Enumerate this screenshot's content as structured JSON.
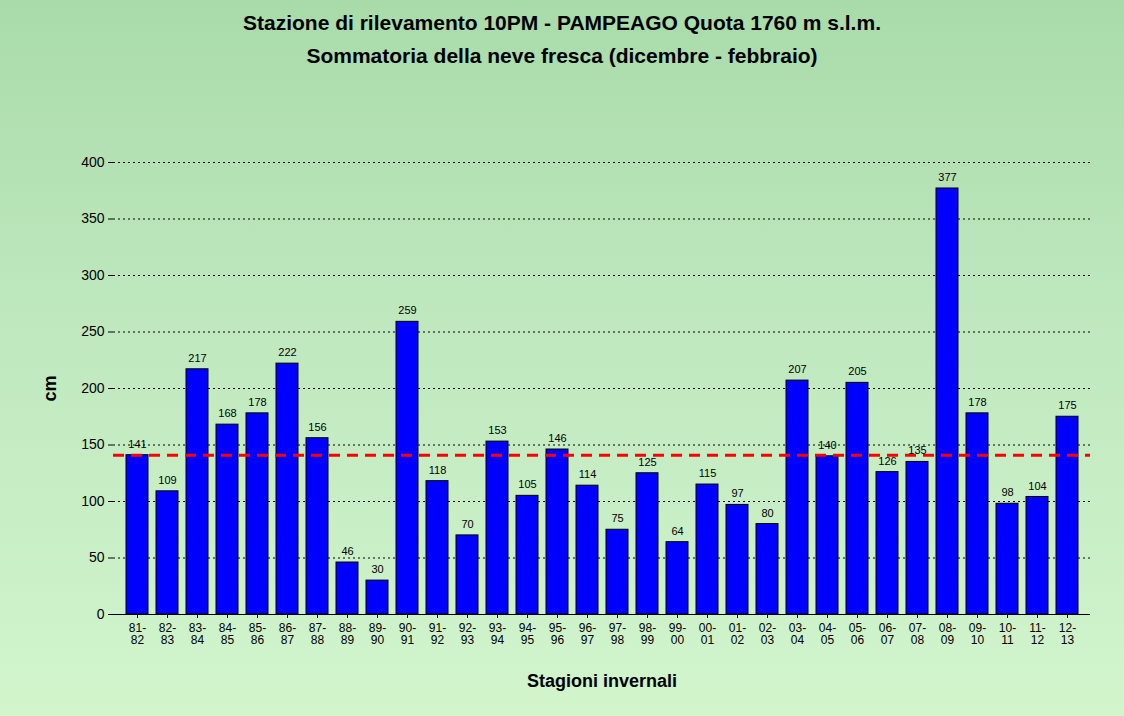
{
  "chart_data": {
    "type": "bar",
    "title": "Stazione di rilevamento 10PM - PAMPEAGO Quota 1760 m s.l.m.",
    "subtitle": "Sommatoria della neve fresca (dicembre - febbraio)",
    "x_label": "Stagioni invernali",
    "y_label": "cm",
    "categories": [
      "81-82",
      "82-83",
      "83-84",
      "84-85",
      "85-86",
      "86-87",
      "87-88",
      "88-89",
      "89-90",
      "90-91",
      "91-92",
      "92-93",
      "93-94",
      "94-95",
      "95-96",
      "96-97",
      "97-98",
      "98-99",
      "99-00",
      "00-01",
      "01-02",
      "02-03",
      "03-04",
      "04-05",
      "05-06",
      "06-07",
      "07-08",
      "08-09",
      "09-10",
      "10-11",
      "11-12",
      "12-13"
    ],
    "values": [
      141,
      109,
      217,
      168,
      178,
      222,
      156,
      46,
      30,
      259,
      118,
      70,
      153,
      105,
      146,
      114,
      75,
      125,
      64,
      115,
      97,
      80,
      207,
      140,
      205,
      126,
      135,
      377,
      178,
      98,
      104,
      175
    ],
    "color": "#0000ff",
    "ylim": [
      0,
      400
    ],
    "yticks": [
      0,
      50,
      100,
      150,
      200,
      250,
      300,
      350,
      400
    ],
    "grid": true,
    "data_labels": true,
    "reference_line": {
      "value": 141,
      "color": "#ff0000",
      "line_style": "dashed"
    }
  }
}
